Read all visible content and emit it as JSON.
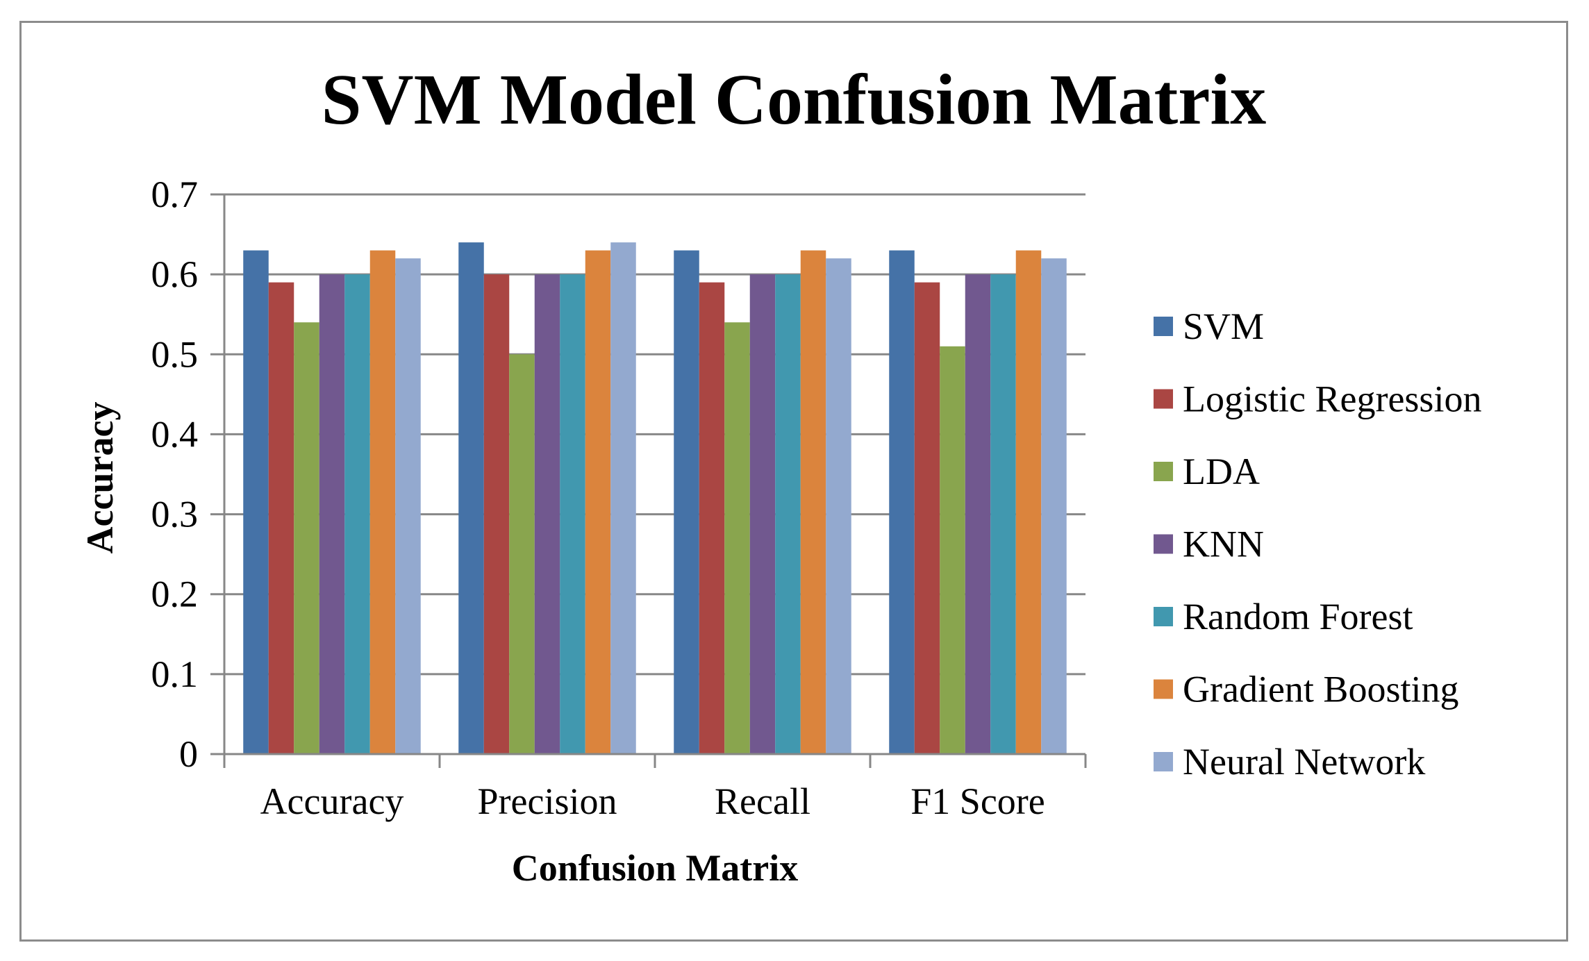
{
  "chart_data": {
    "type": "bar",
    "title": "SVM Model Confusion Matrix",
    "xlabel": "Confusion Matrix",
    "ylabel": "Accuracy",
    "ylim": [
      0,
      0.7
    ],
    "yticks": [
      "0",
      "0.1",
      "0.2",
      "0.3",
      "0.4",
      "0.5",
      "0.6",
      "0.7"
    ],
    "grid": true,
    "legend_position": "right",
    "categories": [
      "Accuracy",
      "Precision",
      "Recall",
      "F1 Score"
    ],
    "series": [
      {
        "name": "SVM",
        "color": "#4572A7",
        "values": [
          0.63,
          0.64,
          0.63,
          0.63
        ]
      },
      {
        "name": "Logistic Regression",
        "color": "#AA4643",
        "values": [
          0.59,
          0.6,
          0.59,
          0.59
        ]
      },
      {
        "name": "LDA",
        "color": "#89A54E",
        "values": [
          0.54,
          0.5,
          0.54,
          0.51
        ]
      },
      {
        "name": "KNN",
        "color": "#71588F",
        "values": [
          0.6,
          0.6,
          0.6,
          0.6
        ]
      },
      {
        "name": "Random Forest",
        "color": "#4198AF",
        "values": [
          0.6,
          0.6,
          0.6,
          0.6
        ]
      },
      {
        "name": "Gradient Boosting",
        "color": "#DB843D",
        "values": [
          0.63,
          0.63,
          0.63,
          0.63
        ]
      },
      {
        "name": "Neural Network",
        "color": "#93A9CF",
        "values": [
          0.62,
          0.64,
          0.62,
          0.62
        ]
      }
    ]
  }
}
